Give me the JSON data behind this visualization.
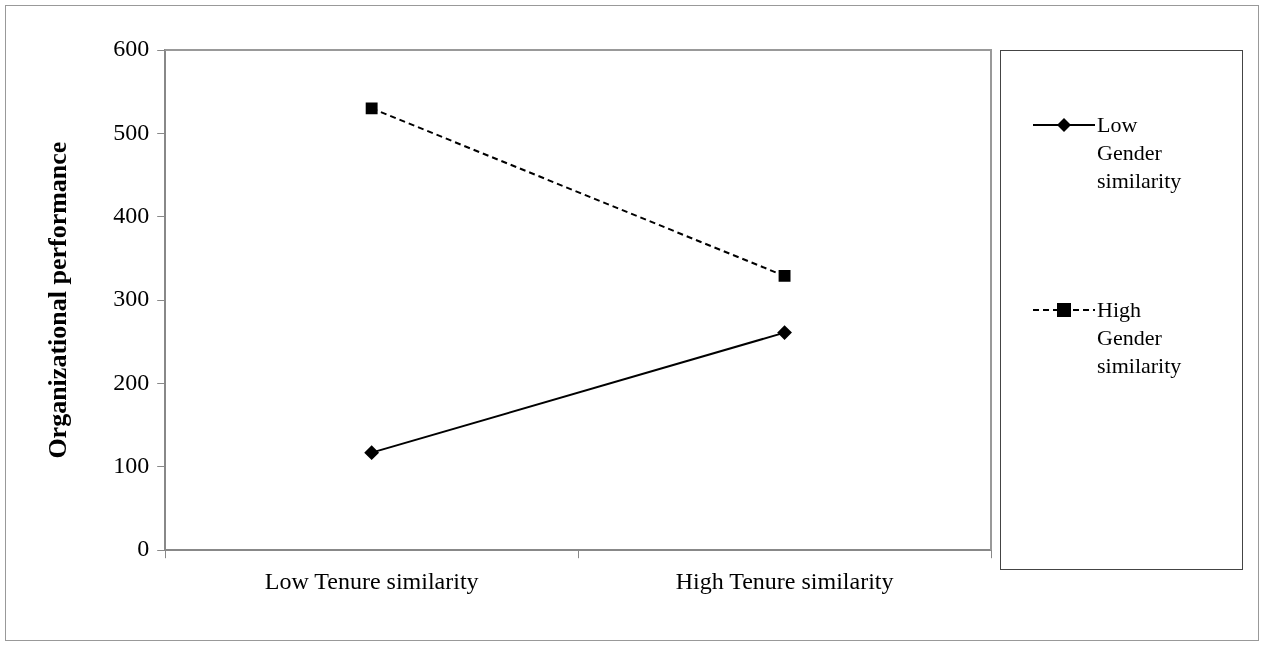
{
  "chart_data": {
    "type": "line",
    "ylabel": "Organizational performance",
    "categories": [
      "Low Tenure similarity",
      "High Tenure similarity"
    ],
    "series": [
      {
        "name": "Low Gender similarity",
        "color": "#000000",
        "values": [
          117,
          261
        ],
        "marker": "diamond",
        "line_style": "solid"
      },
      {
        "name": "High Gender similarity",
        "color": "#000000",
        "values": [
          530,
          329
        ],
        "marker": "square",
        "line_style": "dashed"
      }
    ],
    "ylim": [
      0,
      600
    ],
    "yticks": [
      0,
      100,
      200,
      300,
      400,
      500,
      600
    ],
    "grid": false,
    "legend": "right"
  }
}
